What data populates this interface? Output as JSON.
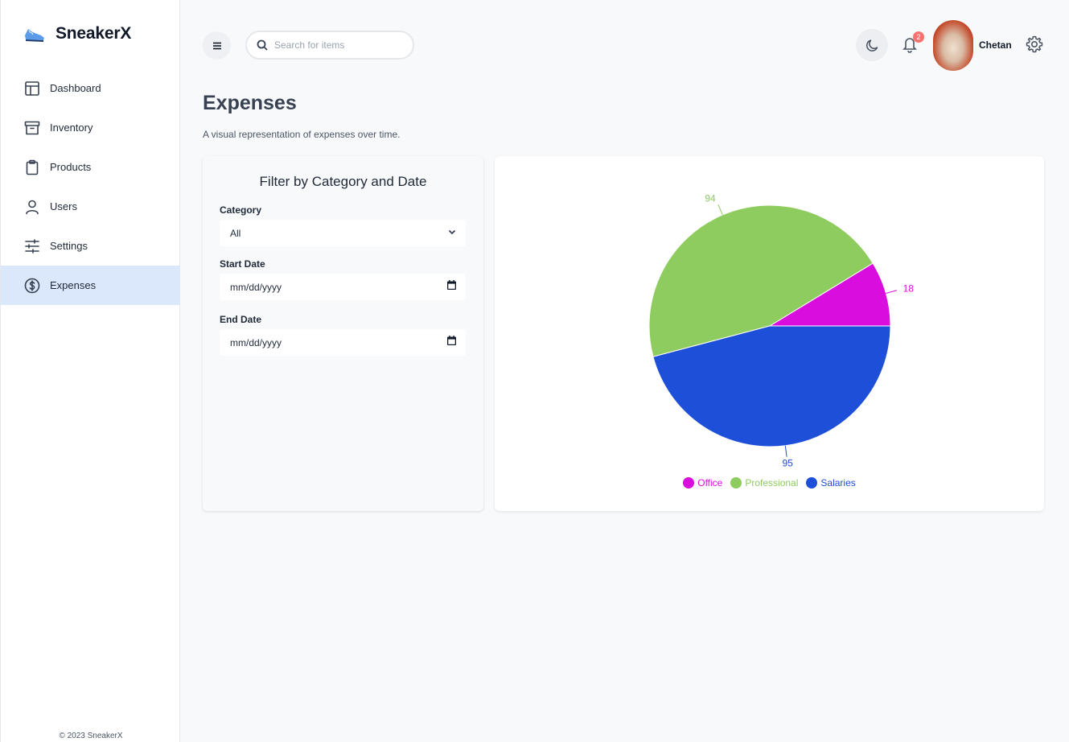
{
  "brand": {
    "name": "SneakerX"
  },
  "sidebar": {
    "items": [
      {
        "label": "Dashboard",
        "icon": "layout-icon"
      },
      {
        "label": "Inventory",
        "icon": "archive-icon"
      },
      {
        "label": "Products",
        "icon": "clipboard-icon"
      },
      {
        "label": "Users",
        "icon": "user-icon"
      },
      {
        "label": "Settings",
        "icon": "sliders-icon"
      },
      {
        "label": "Expenses",
        "icon": "dollar-circle-icon",
        "active": true
      }
    ],
    "copyright": "© 2023 SneakerX"
  },
  "topbar": {
    "search_placeholder": "Search for items",
    "notification_count": "2",
    "user_name": "Chetan"
  },
  "page": {
    "title": "Expenses",
    "subtitle": "A visual representation of expenses over time."
  },
  "filter": {
    "title": "Filter by Category and Date",
    "category_label": "Category",
    "category_value": "All",
    "start_label": "Start Date",
    "start_value": "mm/dd/yyyy",
    "end_label": "End Date",
    "end_value": "mm/dd/yyyy"
  },
  "chart_data": {
    "type": "pie",
    "categories": [
      "Office",
      "Professional",
      "Salaries"
    ],
    "values": [
      18,
      94,
      95
    ],
    "colors": [
      "#d90ede",
      "#8ecc5f",
      "#1e4fd8"
    ],
    "legend_position": "bottom"
  }
}
